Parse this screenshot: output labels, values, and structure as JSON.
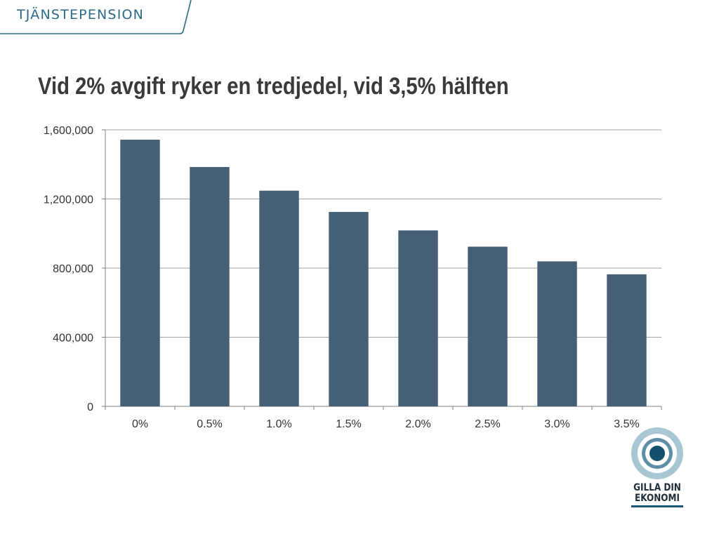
{
  "header": {
    "label": "TJÄNSTEPENSION"
  },
  "slide": {
    "title": "Vid 2% avgift ryker en tredjedel, vid 3,5% hälften"
  },
  "logo": {
    "line1": "GILLA DIN",
    "line2": "EKONOMI"
  },
  "colors": {
    "bar": "#456076",
    "accent": "#2c6a8a",
    "grid": "#a6a6a6"
  },
  "chart_data": {
    "type": "bar",
    "title": "",
    "xlabel": "",
    "ylabel": "",
    "categories": [
      "0%",
      "0.5%",
      "1.0%",
      "1.5%",
      "2.0%",
      "2.5%",
      "3.0%",
      "3.5%"
    ],
    "values": [
      1543000,
      1385000,
      1248000,
      1125000,
      1018000,
      924000,
      839000,
      764000
    ],
    "ylim": [
      0,
      1600000
    ],
    "yticks": [
      "0",
      "400,000",
      "800,000",
      "1,200,000",
      "1,600,000"
    ],
    "grid": true,
    "legend": "none"
  }
}
